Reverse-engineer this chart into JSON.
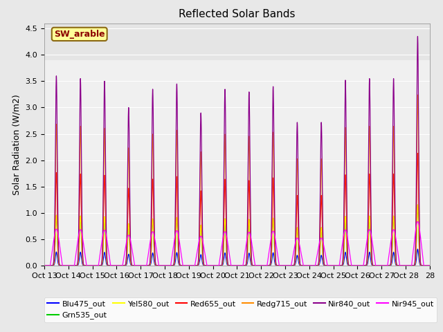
{
  "title": "Reflected Solar Bands",
  "ylabel": "Solar Radiation (W/m2)",
  "annotation": "SW_arable",
  "annotation_color": "#8B0000",
  "annotation_bg": "#FFFF99",
  "annotation_border": "#8B6914",
  "ylim": [
    0,
    4.6
  ],
  "yticks": [
    0.0,
    0.5,
    1.0,
    1.5,
    2.0,
    2.5,
    3.0,
    3.5,
    4.0,
    4.5
  ],
  "lines": [
    {
      "label": "Blu475_out",
      "color": "#0000FF",
      "peak_scale": 0.072
    },
    {
      "label": "Grn535_out",
      "color": "#00CC00",
      "peak_scale": 0.265
    },
    {
      "label": "Yel580_out",
      "color": "#FFFF00",
      "peak_scale": 0.265
    },
    {
      "label": "Red655_out",
      "color": "#FF0000",
      "peak_scale": 0.49
    },
    {
      "label": "Redg715_out",
      "color": "#FF8C00",
      "peak_scale": 0.745
    },
    {
      "label": "Nir840_out",
      "color": "#8B008B",
      "peak_scale": 1.0
    },
    {
      "label": "Nir945_out",
      "color": "#FF00FF",
      "peak_scale": 0.175
    }
  ],
  "n_days": 16,
  "start_day": 13,
  "samples_per_day": 288,
  "day_peaks_nir840": [
    3.6,
    3.55,
    3.5,
    3.0,
    3.35,
    3.45,
    2.9,
    3.35,
    3.3,
    3.4,
    2.72,
    2.72,
    3.52,
    3.55,
    3.55,
    4.35
  ],
  "background_color": "#E8E8E8",
  "plot_bg_color": "#E8E8E8",
  "axis_bg_color": "#F0F0F0",
  "grid_color": "#FFFFFF",
  "legend_fontsize": 8,
  "title_fontsize": 11,
  "ylabel_fontsize": 9,
  "tick_fontsize": 8
}
